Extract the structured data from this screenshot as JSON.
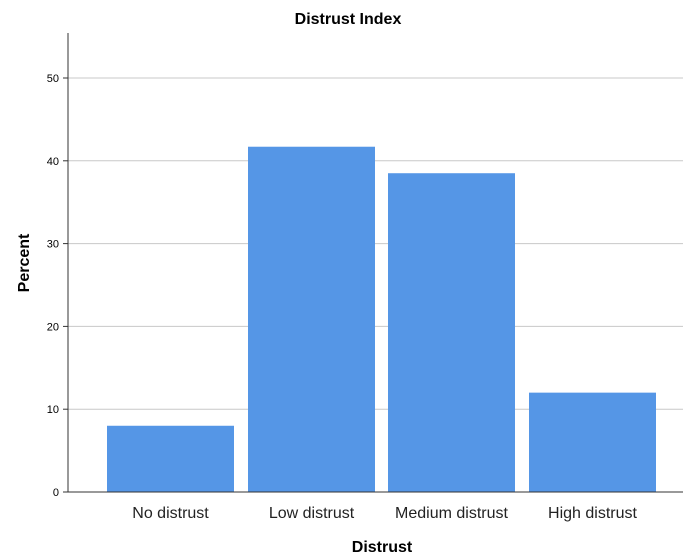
{
  "chart_data": {
    "type": "bar",
    "title": "Distrust Index",
    "xlabel": "Distrust",
    "ylabel": "Percent",
    "categories": [
      "No distrust",
      "Low distrust",
      "Medium distrust",
      "High distrust"
    ],
    "values": [
      8.0,
      41.7,
      38.5,
      12.0
    ],
    "yticks": [
      0,
      10,
      20,
      30,
      40,
      50
    ],
    "ylim": [
      0,
      55
    ],
    "grid": true,
    "bar_color": "#5596e6",
    "grid_color": "#c8c8c8",
    "axis_color": "#333333"
  }
}
